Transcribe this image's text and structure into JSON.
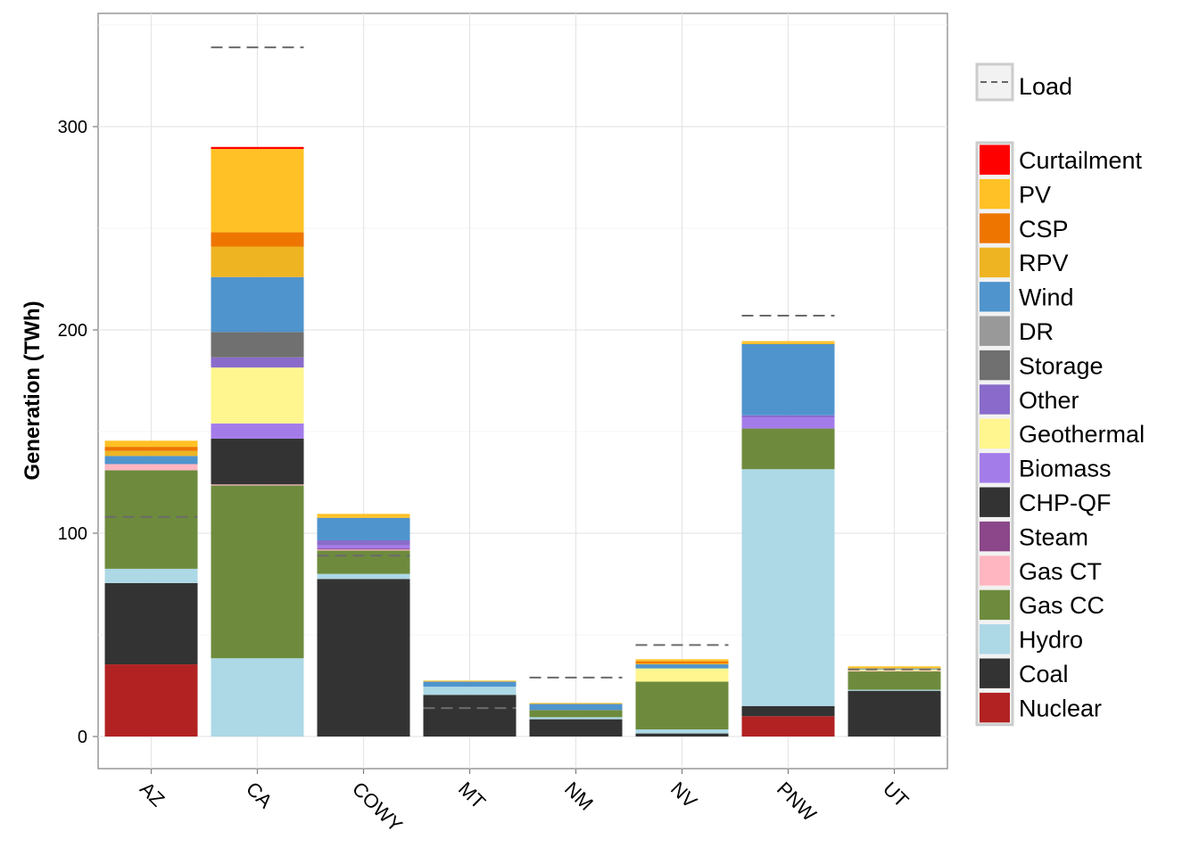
{
  "chart_data": {
    "type": "bar",
    "stacked": true,
    "ylabel": "Generation (TWh)",
    "xlabel": "",
    "ylim": [
      0,
      350
    ],
    "y_ticks": [
      0,
      100,
      200,
      300
    ],
    "grid": true,
    "legend_position": "right",
    "categories": [
      "AZ",
      "CA",
      "COWY",
      "MT",
      "NM",
      "NV",
      "PNW",
      "UT"
    ],
    "load": {
      "name": "Load",
      "values": [
        108,
        339,
        89,
        14,
        29,
        45,
        207,
        33
      ]
    },
    "series": [
      {
        "name": "Nuclear",
        "color": "#B22222",
        "values": [
          35.5,
          0,
          0,
          0,
          0,
          0,
          10,
          0
        ]
      },
      {
        "name": "Coal",
        "color": "#333333",
        "values": [
          40,
          0,
          77.5,
          20.5,
          8.5,
          1.5,
          5,
          22.5
        ]
      },
      {
        "name": "Hydro",
        "color": "#ADD8E6",
        "values": [
          7,
          38.5,
          2.5,
          4,
          1,
          2,
          116.5,
          0.5
        ]
      },
      {
        "name": "Gas CC",
        "color": "#6E8B3D",
        "values": [
          48.5,
          85,
          11.5,
          0,
          3.5,
          23.5,
          20,
          9
        ]
      },
      {
        "name": "Gas CT",
        "color": "#FFB6C1",
        "values": [
          3,
          0.5,
          0.5,
          0,
          0,
          0,
          0,
          0.3
        ]
      },
      {
        "name": "Steam",
        "color": "#8B4789",
        "values": [
          0,
          0,
          0.5,
          0,
          0,
          0,
          0,
          0
        ]
      },
      {
        "name": "CHP-QF",
        "color": "#333333",
        "values": [
          0,
          22.5,
          0,
          0,
          0,
          0,
          0,
          0
        ]
      },
      {
        "name": "Biomass",
        "color": "#A47CEA",
        "values": [
          0,
          7.5,
          1.5,
          0,
          0,
          0,
          5.5,
          0
        ]
      },
      {
        "name": "Geothermal",
        "color": "#FFF68F",
        "values": [
          0,
          27.5,
          0,
          0,
          0,
          6.5,
          0,
          0.7
        ]
      },
      {
        "name": "Other",
        "color": "#8A6BCB",
        "values": [
          0,
          5,
          2.5,
          0,
          0,
          0,
          1,
          0
        ]
      },
      {
        "name": "Storage",
        "color": "#707070",
        "values": [
          0,
          12.5,
          0,
          0,
          0,
          0,
          0,
          0
        ]
      },
      {
        "name": "DR",
        "color": "#999999",
        "values": [
          0,
          0,
          0,
          0,
          0,
          0,
          0,
          0
        ]
      },
      {
        "name": "Wind",
        "color": "#4F94CD",
        "values": [
          4,
          27,
          11,
          2.5,
          3,
          2,
          35,
          0.5
        ]
      },
      {
        "name": "RPV",
        "color": "#EEB422",
        "values": [
          2.5,
          15,
          0.5,
          0,
          0,
          0.5,
          0.5,
          0.2
        ]
      },
      {
        "name": "CSP",
        "color": "#EE7600",
        "values": [
          2,
          7,
          0,
          0,
          0,
          1,
          0,
          0
        ]
      },
      {
        "name": "PV",
        "color": "#FFC125",
        "values": [
          3,
          41,
          1.5,
          0.5,
          0.5,
          1,
          1,
          0.8
        ]
      },
      {
        "name": "Curtailment",
        "color": "#FF0000",
        "values": [
          0,
          1,
          0,
          0,
          0,
          0,
          0,
          0
        ]
      }
    ],
    "legend_order": [
      "Curtailment",
      "PV",
      "CSP",
      "RPV",
      "Wind",
      "DR",
      "Storage",
      "Other",
      "Geothermal",
      "Biomass",
      "CHP-QF",
      "Steam",
      "Gas CT",
      "Gas CC",
      "Hydro",
      "Coal",
      "Nuclear"
    ]
  }
}
